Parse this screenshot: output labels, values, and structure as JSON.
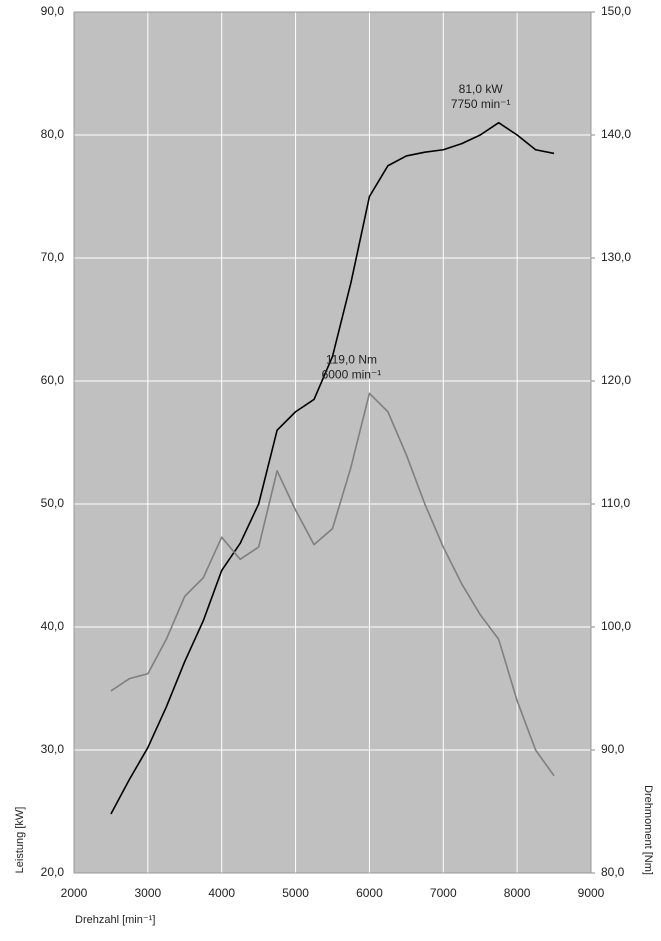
{
  "chart_data": {
    "type": "line",
    "x_label": "Drehzahl [min⁻¹]",
    "y_label": "Leistung [kW]",
    "y2_label": "Drehmoment [Nm]",
    "x": [
      2500,
      2750,
      3000,
      3250,
      3500,
      3750,
      4000,
      4250,
      4500,
      4750,
      5000,
      5250,
      5500,
      5750,
      6000,
      6250,
      6500,
      6750,
      7000,
      7250,
      7500,
      7750,
      8000,
      8250,
      8500
    ],
    "series": [
      {
        "name": "Leistung",
        "color": "#000000",
        "values": [
          24.8,
          27.6,
          30.2,
          33.5,
          37.2,
          40.5,
          44.6,
          46.8,
          50,
          56,
          57.5,
          58.5,
          62,
          68,
          75,
          77.5,
          78.3,
          78.6,
          78.8,
          79.3,
          80,
          81,
          80,
          78.8,
          78.5
        ]
      },
      {
        "name": "Drehmoment",
        "color": "#7f7f7f",
        "axis": "y2",
        "values": [
          94.8,
          95.8,
          96.2,
          99,
          102.5,
          104,
          107.3,
          105.5,
          106.5,
          112.7,
          109.5,
          106.7,
          108,
          113,
          119,
          117.5,
          114,
          110,
          106.5,
          103.5,
          101,
          99,
          94,
          90,
          87.9
        ]
      }
    ],
    "annotations": [
      {
        "lines": [
          "81,0 kW",
          "7750 min⁻¹"
        ],
        "x": 7750,
        "y": 81
      },
      {
        "lines": [
          "119,0 Nm",
          "6000 min⁻¹"
        ],
        "x": 6000,
        "y": 119,
        "axis": "y2"
      }
    ],
    "xlim": [
      2000,
      9000
    ],
    "xticks": [
      2000,
      3000,
      4000,
      5000,
      6000,
      7000,
      8000,
      9000
    ],
    "ylim": [
      20,
      90
    ],
    "yticks": [
      {
        "value": 20,
        "label": "20,0"
      },
      {
        "value": 30,
        "label": "30,0"
      },
      {
        "value": 40,
        "label": "40,0"
      },
      {
        "value": 50,
        "label": "50,0"
      },
      {
        "value": 60,
        "label": "60,0"
      },
      {
        "value": 70,
        "label": "70,0"
      },
      {
        "value": 80,
        "label": "80,0"
      },
      {
        "value": 90,
        "label": "90,0"
      }
    ],
    "y2lim": [
      80,
      150
    ],
    "y2ticks": [
      {
        "value": 80,
        "label": "80,0"
      },
      {
        "value": 90,
        "label": "90,0"
      },
      {
        "value": 100,
        "label": "100,0"
      },
      {
        "value": 110,
        "label": "110,0"
      },
      {
        "value": 120,
        "label": "120,0"
      },
      {
        "value": 130,
        "label": "130,0"
      },
      {
        "value": 140,
        "label": "140,0"
      },
      {
        "value": 150,
        "label": "150,0"
      }
    ],
    "grid": true,
    "background": "#c0c0c0",
    "grid_color": "#ffffff"
  }
}
